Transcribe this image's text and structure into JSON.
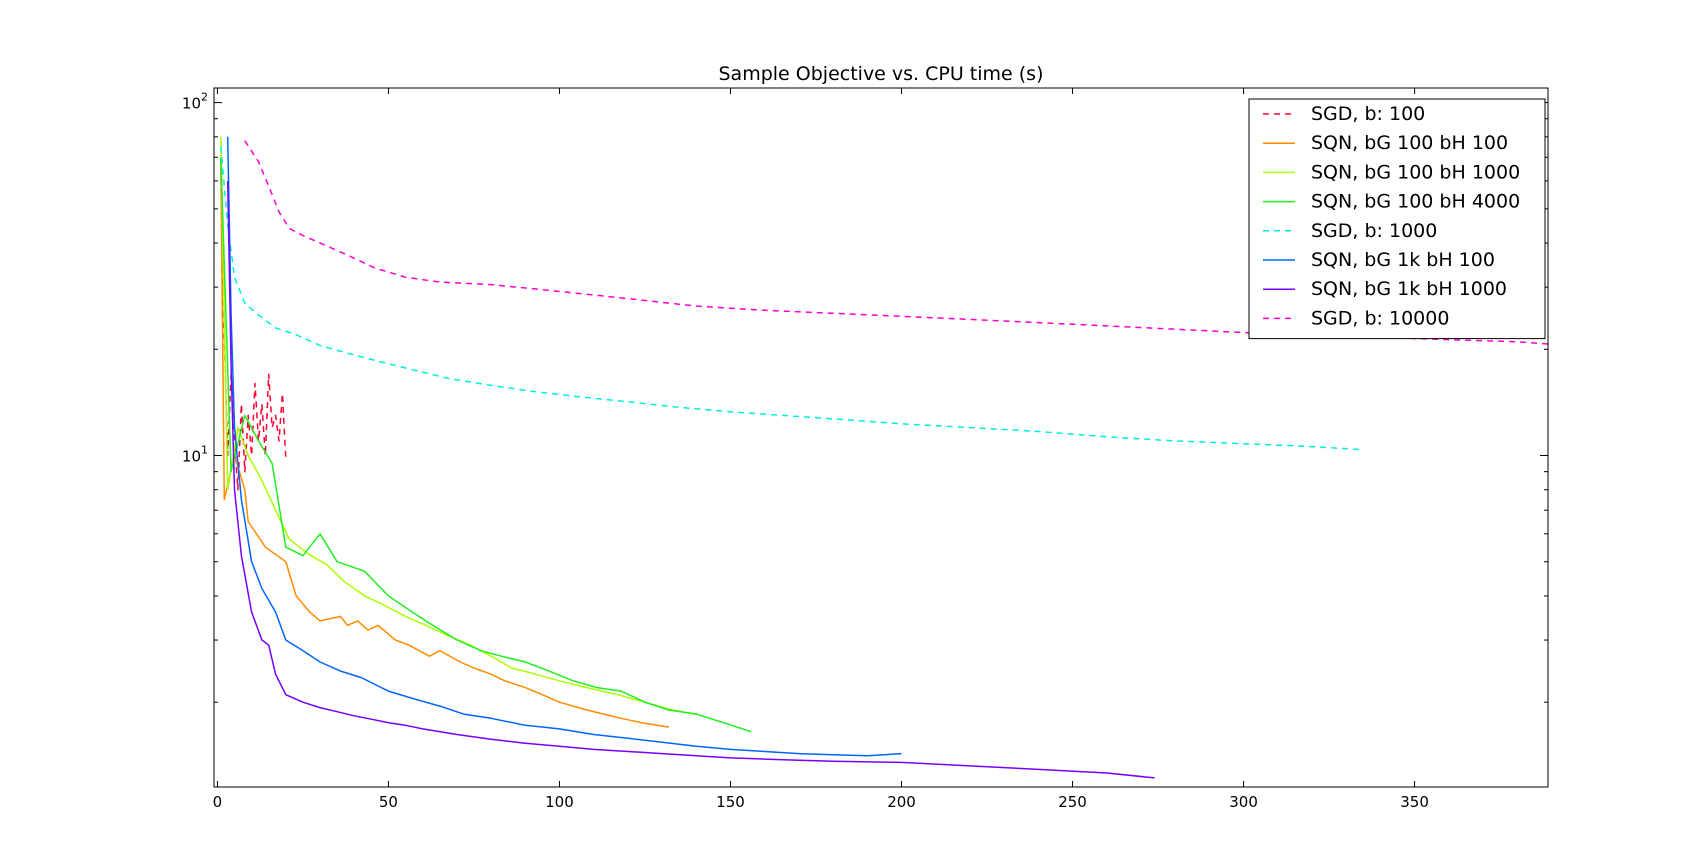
{
  "chart_data": {
    "type": "line",
    "title": "Sample Objective vs. CPU time (s)",
    "xlabel": "",
    "ylabel": "",
    "xlim": [
      -1,
      389
    ],
    "ylim": [
      1.15,
      110
    ],
    "yscale": "log",
    "x_ticks": [
      0,
      50,
      100,
      150,
      200,
      250,
      300,
      350
    ],
    "x_tick_labels": [
      "0",
      "50",
      "100",
      "150",
      "200",
      "250",
      "300",
      "350"
    ],
    "y_ticks": [
      10,
      100
    ],
    "y_tick_labels": [
      {
        "base": "10",
        "exp": "1"
      },
      {
        "base": "10",
        "exp": "2"
      }
    ],
    "grid": false,
    "legend_position": "top-right",
    "series": [
      {
        "name": "SGD, b: 100",
        "color": "#ff0033",
        "dash": "dashed",
        "x": [
          1,
          1.5,
          2,
          3,
          4,
          5,
          6,
          7,
          8,
          9,
          10,
          11,
          12,
          13,
          14,
          15,
          16,
          17,
          18,
          19,
          20
        ],
        "y": [
          70,
          25,
          22,
          10,
          17,
          11,
          8,
          14,
          9,
          13,
          10,
          16,
          11,
          14,
          10,
          17,
          12,
          13,
          11,
          15,
          9.8
        ]
      },
      {
        "name": "SQN, bG 100 bH 100",
        "color": "#ff8c00",
        "dash": "solid",
        "x": [
          1,
          2,
          5,
          8,
          9,
          14,
          20,
          23,
          27,
          30,
          36,
          38,
          41,
          44,
          47,
          52,
          56,
          62,
          65,
          71,
          75,
          80,
          84,
          90,
          95,
          100,
          108,
          113,
          118,
          124,
          132
        ],
        "y": [
          70,
          7.5,
          10,
          8,
          6.5,
          5.5,
          5,
          4,
          3.6,
          3.4,
          3.5,
          3.3,
          3.4,
          3.2,
          3.3,
          3.0,
          2.9,
          2.7,
          2.8,
          2.6,
          2.5,
          2.4,
          2.3,
          2.2,
          2.1,
          2.0,
          1.9,
          1.85,
          1.8,
          1.75,
          1.7
        ]
      },
      {
        "name": "SQN, bG 100 bH 1000",
        "color": "#aaff00",
        "dash": "solid",
        "x": [
          1,
          3,
          6,
          9,
          13,
          17,
          21,
          26,
          32,
          37,
          43,
          48,
          55,
          61,
          67,
          74,
          80,
          86,
          93,
          100,
          108,
          117,
          125,
          133,
          140
        ],
        "y": [
          80,
          8,
          12,
          10,
          8.5,
          7,
          5.8,
          5.3,
          4.9,
          4.4,
          4.0,
          3.8,
          3.5,
          3.3,
          3.1,
          2.9,
          2.7,
          2.5,
          2.4,
          2.3,
          2.2,
          2.1,
          2.0,
          1.9,
          1.85
        ]
      },
      {
        "name": "SQN, bG 100 bH 4000",
        "color": "#22ee22",
        "dash": "solid",
        "x": [
          1,
          4,
          8,
          12,
          16,
          20,
          25,
          30,
          35,
          43,
          50,
          57,
          63,
          70,
          77,
          83,
          90,
          97,
          104,
          111,
          118,
          125,
          132,
          140,
          148,
          156
        ],
        "y": [
          70,
          9,
          13,
          11,
          9.5,
          5.5,
          5.2,
          6.0,
          5.0,
          4.7,
          4.0,
          3.6,
          3.3,
          3.0,
          2.8,
          2.7,
          2.6,
          2.45,
          2.3,
          2.2,
          2.15,
          2.0,
          1.9,
          1.85,
          1.75,
          1.65
        ]
      },
      {
        "name": "SGD, b: 1000",
        "color": "#00eedd",
        "dash": "dashed",
        "x": [
          1,
          3,
          5,
          8,
          12,
          17,
          23,
          30,
          38,
          47,
          57,
          68,
          80,
          92,
          105,
          120,
          135,
          150,
          165,
          180,
          200,
          220,
          240,
          260,
          280,
          300,
          320,
          334
        ],
        "y": [
          75,
          45,
          32,
          27,
          25,
          23,
          22,
          20.5,
          19.5,
          18.5,
          17.5,
          16.5,
          15.8,
          15.2,
          14.7,
          14.2,
          13.7,
          13.3,
          13.0,
          12.7,
          12.3,
          12.0,
          11.7,
          11.3,
          11.0,
          10.8,
          10.6,
          10.4
        ]
      },
      {
        "name": "SQN, bG 1k bH 100",
        "color": "#0066ff",
        "dash": "solid",
        "x": [
          3,
          4,
          5,
          7,
          10,
          13,
          17,
          20,
          25,
          30,
          36,
          42,
          50,
          57,
          65,
          72,
          80,
          90,
          100,
          110,
          120,
          130,
          140,
          150,
          160,
          170,
          180,
          190,
          200
        ],
        "y": [
          80,
          25,
          12,
          7.5,
          5.0,
          4.2,
          3.6,
          3.0,
          2.8,
          2.6,
          2.45,
          2.35,
          2.15,
          2.05,
          1.95,
          1.85,
          1.8,
          1.72,
          1.68,
          1.62,
          1.58,
          1.54,
          1.5,
          1.47,
          1.45,
          1.43,
          1.42,
          1.41,
          1.43
        ]
      },
      {
        "name": "SQN, bG 1k bH 1000",
        "color": "#7700ff",
        "dash": "solid",
        "x": [
          3,
          4,
          5,
          7,
          10,
          13,
          15,
          17,
          20,
          25,
          30,
          35,
          40,
          45,
          50,
          55,
          60,
          70,
          80,
          90,
          100,
          110,
          120,
          130,
          140,
          150,
          160,
          170,
          180,
          200,
          220,
          240,
          260,
          274
        ],
        "y": [
          60,
          18,
          8,
          5.2,
          3.6,
          3.0,
          2.9,
          2.4,
          2.1,
          2.0,
          1.93,
          1.88,
          1.83,
          1.79,
          1.75,
          1.72,
          1.68,
          1.62,
          1.57,
          1.53,
          1.5,
          1.47,
          1.45,
          1.43,
          1.41,
          1.39,
          1.38,
          1.37,
          1.36,
          1.35,
          1.32,
          1.29,
          1.26,
          1.22
        ]
      },
      {
        "name": "SGD, b: 10000",
        "color": "#ff00cc",
        "dash": "dashed",
        "x": [
          8,
          12,
          15,
          18,
          21,
          25,
          30,
          38,
          46,
          55,
          65,
          80,
          95,
          110,
          125,
          140,
          160,
          180,
          200,
          220,
          240,
          260,
          280,
          300,
          320,
          340,
          360,
          380,
          389
        ],
        "y": [
          78,
          68,
          58,
          49,
          44,
          42,
          40,
          37,
          34,
          32,
          31,
          30.5,
          29.5,
          28.5,
          27.5,
          26.5,
          25.8,
          25.3,
          24.8,
          24.3,
          23.8,
          23.3,
          22.8,
          22.3,
          21.9,
          21.6,
          21.3,
          21.0,
          20.7
        ]
      }
    ]
  }
}
